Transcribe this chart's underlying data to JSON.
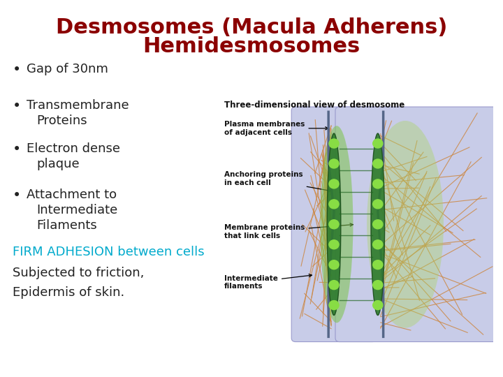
{
  "title_line1": "Desmosomes (Macula Adherens)",
  "title_line2": "Hemidesmosomes",
  "title_color": "#8B0000",
  "title_fontsize": 22,
  "title_fontstyle": "bold",
  "bullet_items": [
    [
      "Gap of 30nm",
      ""
    ],
    [
      "Transmembrane",
      "Proteins"
    ],
    [
      "Electron dense",
      "plaque"
    ],
    [
      "Attachment to",
      "Intermediate\nFilaments"
    ]
  ],
  "bullet_fontsize": 13,
  "bullet_color": "#222222",
  "highlight_text": "FIRM ADHESION between cells",
  "highlight_color": "#00AACC",
  "highlight_fontsize": 13,
  "extra_lines": [
    "Subjected to friction,",
    "Epidermis of skin."
  ],
  "extra_fontsize": 13,
  "extra_color": "#222222",
  "background_color": "#FFFFFF",
  "diagram_label_title": "Three-dimensional view of desmosome",
  "diagram_labels": [
    "Plasma membranes\nof adjacent cells",
    "Anchoring proteins\nin each cell",
    "Membrane proteins\nthat link cells",
    "Intermediate\nfilaments"
  ]
}
